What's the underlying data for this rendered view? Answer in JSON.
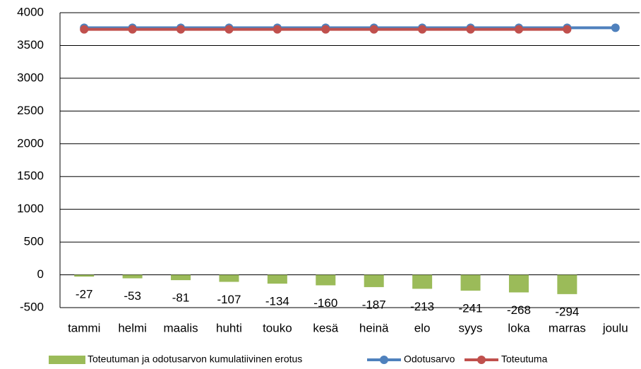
{
  "chart_data": {
    "type": "combo",
    "categories": [
      "tammi",
      "helmi",
      "maalis",
      "huhti",
      "touko",
      "kesä",
      "heinä",
      "elo",
      "syys",
      "loka",
      "marras",
      "joulu"
    ],
    "series": [
      {
        "name": "Toteutuman ja odotusarvon kumulatiivinen erotus",
        "type": "bar",
        "color": "#9bbb59",
        "values": [
          -27,
          -53,
          -81,
          -107,
          -134,
          -160,
          -187,
          -213,
          -241,
          -268,
          -294,
          null
        ]
      },
      {
        "name": "Odotusarvo",
        "type": "line",
        "color": "#4f81bd",
        "values": [
          3770,
          3770,
          3770,
          3770,
          3770,
          3770,
          3770,
          3770,
          3770,
          3770,
          3770,
          3770
        ]
      },
      {
        "name": "Toteutuma",
        "type": "line",
        "color": "#c0504d",
        "values": [
          3745,
          3745,
          3745,
          3745,
          3745,
          3745,
          3745,
          3745,
          3745,
          3745,
          3745,
          null
        ]
      }
    ],
    "ylim": [
      -500,
      4000
    ],
    "yticks": [
      -500,
      0,
      500,
      1000,
      1500,
      2000,
      2500,
      3000,
      3500,
      4000
    ],
    "grid": true,
    "legend": "bottom"
  }
}
